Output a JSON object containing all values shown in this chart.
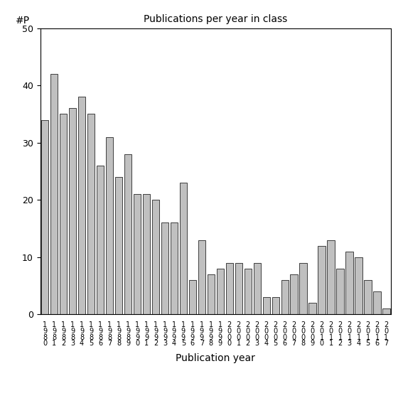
{
  "title": "Publications per year in class",
  "xlabel": "Publication year",
  "ylabel": "#P",
  "bar_color": "#c0c0c0",
  "edge_color": "#000000",
  "ylim": [
    0,
    50
  ],
  "yticks": [
    0,
    10,
    20,
    30,
    40,
    50
  ],
  "categories": [
    "1\n9\n8\n0",
    "1\n9\n8\n1",
    "1\n9\n8\n2",
    "1\n9\n8\n3",
    "1\n9\n8\n4",
    "1\n9\n8\n5",
    "1\n9\n8\n6",
    "1\n9\n8\n7",
    "1\n9\n8\n8",
    "1\n9\n8\n9",
    "1\n9\n9\n0",
    "1\n9\n9\n1",
    "1\n9\n9\n2",
    "1\n9\n9\n3",
    "1\n9\n9\n4",
    "1\n9\n9\n5",
    "1\n9\n9\n6",
    "1\n9\n9\n7",
    "1\n9\n9\n8",
    "1\n9\n9\n9",
    "2\n0\n0\n0",
    "2\n0\n0\n1",
    "2\n0\n0\n2",
    "2\n0\n0\n3",
    "2\n0\n0\n4",
    "2\n0\n0\n5",
    "2\n0\n0\n6",
    "2\n0\n0\n7",
    "2\n0\n0\n8",
    "2\n0\n0\n9",
    "2\n0\n1\n0",
    "2\n0\n1\n1",
    "2\n0\n1\n2",
    "2\n0\n1\n3",
    "2\n0\n1\n4",
    "2\n0\n1\n5",
    "2\n0\n1\n6",
    "2\n0\n1\n7"
  ],
  "values": [
    34,
    42,
    35,
    36,
    38,
    35,
    26,
    31,
    24,
    28,
    21,
    21,
    20,
    16,
    16,
    23,
    6,
    13,
    7,
    8,
    9,
    9,
    8,
    9,
    3,
    3,
    6,
    7,
    9,
    2,
    12,
    13,
    8,
    11,
    10,
    6,
    4,
    1
  ]
}
